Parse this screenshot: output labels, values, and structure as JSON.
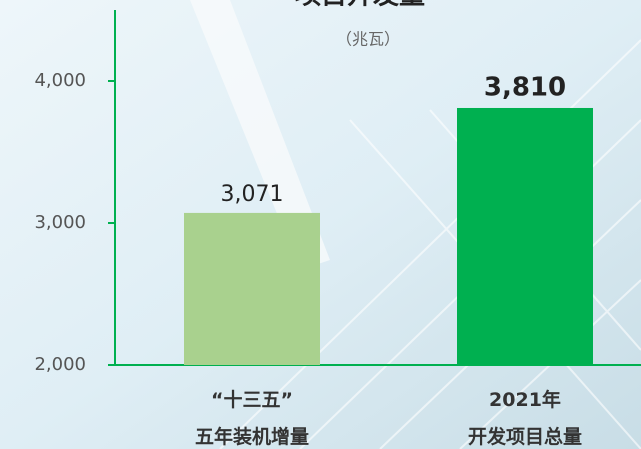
{
  "chart_data": {
    "type": "bar",
    "title": "项目开发量",
    "subtitle": "（兆瓦）",
    "categories": [
      "“十三五”\n五年装机增量",
      "2021年\n开发项目总量"
    ],
    "values": [
      3071,
      3810
    ],
    "value_labels": [
      "3,071",
      "3,810"
    ],
    "colors": [
      "#a9d18e",
      "#00b050"
    ],
    "ylim": [
      2000,
      4500
    ],
    "yticks": [
      {
        "value": 2000,
        "label": "2,000"
      },
      {
        "value": 3000,
        "label": "3,000"
      },
      {
        "value": 4000,
        "label": "4,000"
      }
    ]
  }
}
